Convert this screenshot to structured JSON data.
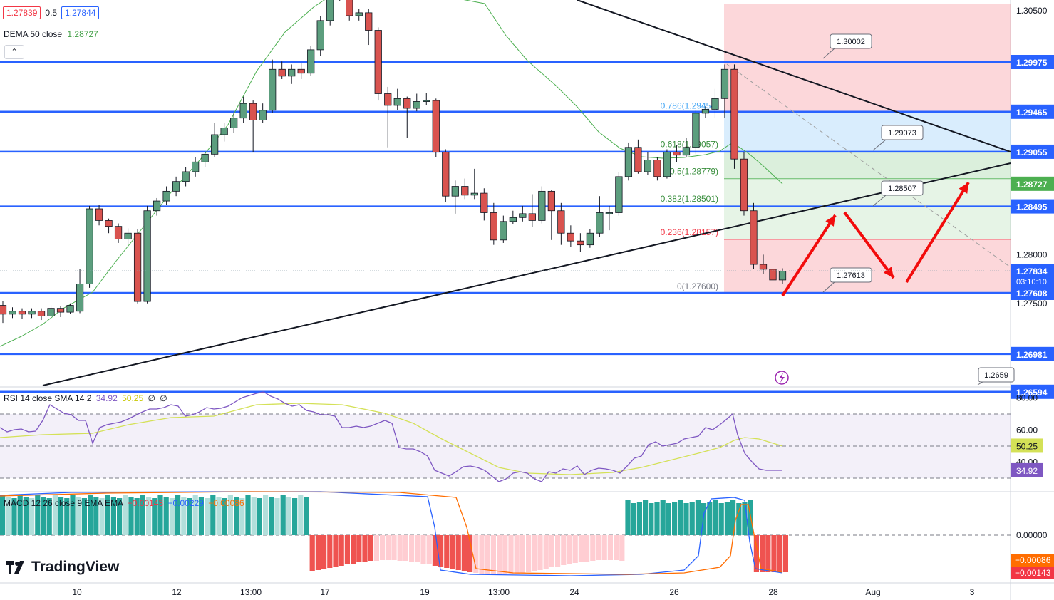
{
  "header": {
    "bid": "1.27839",
    "spread": "0.5",
    "ask": "1.27844"
  },
  "dema": {
    "label": "DEMA 50 close",
    "value": "1.28727"
  },
  "rsi_label": {
    "name": "RSI 14 close SMA 14 2",
    "v1": "34.92",
    "v2": "50.25",
    "v3": "∅",
    "v4": "∅"
  },
  "macd_label": {
    "name": "MACD 12 26 close 9 EMA EMA",
    "v1": "−0.00143",
    "v2": "−0.00229",
    "v3": "−0.00086"
  },
  "logo": "TradingView",
  "chart_data": {
    "type": "candlestick",
    "price_ticks": [
      "1.30500",
      "1.29500",
      "1.28000",
      "1.27500"
    ],
    "hlines": [
      {
        "price": "1.29975",
        "color": "#2962ff"
      },
      {
        "price": "1.29465",
        "color": "#2962ff"
      },
      {
        "price": "1.29055",
        "color": "#2962ff"
      },
      {
        "price": "1.28495",
        "color": "#2962ff"
      },
      {
        "price": "1.27608",
        "color": "#2962ff"
      },
      {
        "price": "1.26981",
        "color": "#2962ff"
      },
      {
        "price": "1.26594",
        "color": "#2962ff"
      }
    ],
    "price_tags": [
      {
        "text": "1.28727",
        "color": "#4caf50"
      },
      {
        "text": "1.27834",
        "sub": "03:10:10",
        "color": "#2962ff"
      }
    ],
    "fib_levels": [
      {
        "label": "0.786(1.29454)",
        "price": 1.29454,
        "color": "#42a5f5"
      },
      {
        "label": "0.618(1.29057)",
        "price": 1.29057,
        "color": "#388e3c"
      },
      {
        "label": "0.5(1.28779)",
        "price": 1.28779,
        "color": "#388e3c"
      },
      {
        "label": "0.382(1.28501)",
        "price": 1.28501,
        "color": "#388e3c"
      },
      {
        "label": "0.236(1.28157)",
        "price": 1.28157,
        "color": "#f23645"
      },
      {
        "label": "0(1.27600)",
        "price": 1.276,
        "color": "#787b86"
      }
    ],
    "callouts": [
      "1.30002",
      "1.29073",
      "1.28507",
      "1.27613",
      "1.2659"
    ],
    "x_ticks": [
      "10",
      "12",
      "13:00",
      "17",
      "19",
      "13:00",
      "24",
      "26",
      "28",
      "Aug",
      "3"
    ],
    "rsi": {
      "value": 34.92,
      "sma": 50.25,
      "levels": [
        70,
        50,
        30
      ],
      "ticks": [
        "80.00",
        "60.00",
        "40.00"
      ],
      "tag_rsi": "34.92",
      "tag_sma": "50.25"
    },
    "macd": {
      "macd": -0.00229,
      "signal": -0.00086,
      "hist": -0.00143,
      "ticks": [
        "0.00000"
      ],
      "tag_signal": "−0.00086",
      "tag_hist": "−0.00143"
    },
    "candles": [
      [
        1.2748,
        1.2739,
        1.2752,
        1.273
      ],
      [
        1.2739,
        1.2742,
        1.2746,
        1.2735
      ],
      [
        1.2742,
        1.2739,
        1.2745,
        1.2734
      ],
      [
        1.2739,
        1.2742,
        1.2745,
        1.2735
      ],
      [
        1.2742,
        1.2737,
        1.2745,
        1.2733
      ],
      [
        1.2737,
        1.2745,
        1.2748,
        1.2735
      ],
      [
        1.2745,
        1.2741,
        1.2747,
        1.2736
      ],
      [
        1.2741,
        1.2748,
        1.275,
        1.2739
      ],
      [
        1.2742,
        1.277,
        1.2785,
        1.274
      ],
      [
        1.277,
        1.2847,
        1.285,
        1.2766
      ],
      [
        1.2847,
        1.2835,
        1.2851,
        1.283
      ],
      [
        1.2835,
        1.2829,
        1.2837,
        1.2822
      ],
      [
        1.2829,
        1.2816,
        1.2832,
        1.2812
      ],
      [
        1.2816,
        1.2822,
        1.2827,
        1.281
      ],
      [
        1.2822,
        1.2752,
        1.2826,
        1.275
      ],
      [
        1.2752,
        1.2845,
        1.285,
        1.275
      ],
      [
        1.2845,
        1.2855,
        1.2858,
        1.284
      ],
      [
        1.2855,
        1.2865,
        1.287,
        1.2851
      ],
      [
        1.2865,
        1.2875,
        1.288,
        1.286
      ],
      [
        1.2875,
        1.2885,
        1.289,
        1.287
      ],
      [
        1.2885,
        1.2895,
        1.29,
        1.288
      ],
      [
        1.2895,
        1.2903,
        1.2905,
        1.289
      ],
      [
        1.2903,
        1.2923,
        1.2935,
        1.29
      ],
      [
        1.2923,
        1.293,
        1.2935,
        1.2916
      ],
      [
        1.293,
        1.294,
        1.2945,
        1.2925
      ],
      [
        1.294,
        1.2955,
        1.2962,
        1.2935
      ],
      [
        1.2955,
        1.2938,
        1.2958,
        1.2905
      ],
      [
        1.2938,
        1.2948,
        1.2955,
        1.2935
      ],
      [
        1.2948,
        1.299,
        1.3,
        1.2945
      ],
      [
        1.299,
        1.2983,
        1.2998,
        1.298
      ],
      [
        1.2983,
        1.299,
        1.2995,
        1.2975
      ],
      [
        1.299,
        1.2986,
        1.2996,
        1.298
      ],
      [
        1.2986,
        1.301,
        1.3014,
        1.2983
      ],
      [
        1.301,
        1.304,
        1.3045,
        1.3004
      ],
      [
        1.304,
        1.307,
        1.308,
        1.3035
      ],
      [
        1.307,
        1.309,
        1.31,
        1.306
      ]
    ],
    "candles2": [
      [
        1.3065,
        1.3045,
        1.3075,
        1.304
      ],
      [
        1.3045,
        1.3048,
        1.3052,
        1.304
      ],
      [
        1.3048,
        1.303,
        1.3052,
        1.3015
      ],
      [
        1.303,
        1.2965,
        1.3033,
        1.2958
      ],
      [
        1.2965,
        1.2953,
        1.2972,
        1.291
      ],
      [
        1.2953,
        1.296,
        1.297,
        1.2948
      ],
      [
        1.296,
        1.295,
        1.2962,
        1.292
      ],
      [
        1.295,
        1.2957,
        1.2965,
        1.2947
      ],
      [
        1.2957,
        1.2958,
        1.2966,
        1.2953
      ],
      [
        1.2958,
        1.2905,
        1.296,
        1.29
      ],
      [
        1.2905,
        1.286,
        1.2908,
        1.2854
      ],
      [
        1.286,
        1.287,
        1.2876,
        1.2842
      ],
      [
        1.287,
        1.2861,
        1.2878,
        1.2857
      ],
      [
        1.2861,
        1.2863,
        1.2888,
        1.2857
      ],
      [
        1.2863,
        1.2843,
        1.2868,
        1.2835
      ],
      [
        1.2843,
        1.2815,
        1.2853,
        1.281
      ],
      [
        1.2815,
        1.2834,
        1.284,
        1.2812
      ],
      [
        1.2834,
        1.2838,
        1.2845,
        1.2831
      ],
      [
        1.2838,
        1.2842,
        1.285,
        1.2834
      ],
      [
        1.2842,
        1.2835,
        1.2862,
        1.2828
      ],
      [
        1.2835,
        1.2865,
        1.287,
        1.2832
      ],
      [
        1.2865,
        1.2845,
        1.2866,
        1.2815
      ],
      [
        1.2845,
        1.2822,
        1.2853,
        1.281
      ],
      [
        1.2822,
        1.2814,
        1.283,
        1.2808
      ],
      [
        1.2814,
        1.281,
        1.2822,
        1.2803
      ],
      [
        1.281,
        1.2822,
        1.2826,
        1.2807
      ],
      [
        1.2822,
        1.2843,
        1.286,
        1.2818
      ],
      [
        1.2843,
        1.2843,
        1.285,
        1.2825
      ],
      [
        1.2843,
        1.288,
        1.2885,
        1.284
      ],
      [
        1.288,
        1.291,
        1.2915,
        1.2876
      ],
      [
        1.291,
        1.2885,
        1.2918,
        1.2883
      ],
      [
        1.2885,
        1.2897,
        1.2905,
        1.2882
      ],
      [
        1.2897,
        1.288,
        1.29,
        1.2876
      ],
      [
        1.288,
        1.2905,
        1.2908,
        1.2878
      ],
      [
        1.2905,
        1.2902,
        1.2912,
        1.2895
      ],
      [
        1.2902,
        1.291,
        1.292,
        1.29
      ],
      [
        1.291,
        1.2945,
        1.2948,
        1.2903
      ],
      [
        1.2945,
        1.2949,
        1.2952,
        1.294
      ],
      [
        1.2949,
        1.296,
        1.297,
        1.294
      ],
      [
        1.296,
        1.299,
        1.2995,
        1.294
      ],
      [
        1.299,
        1.2898,
        1.2995,
        1.2888
      ],
      [
        1.2898,
        1.2845,
        1.2905,
        1.284
      ],
      [
        1.2845,
        1.279,
        1.2853,
        1.2785
      ],
      [
        1.279,
        1.2785,
        1.28,
        1.278
      ],
      [
        1.2785,
        1.2774,
        1.279,
        1.2764
      ],
      [
        1.2774,
        1.2783,
        1.2786,
        1.277
      ]
    ]
  }
}
